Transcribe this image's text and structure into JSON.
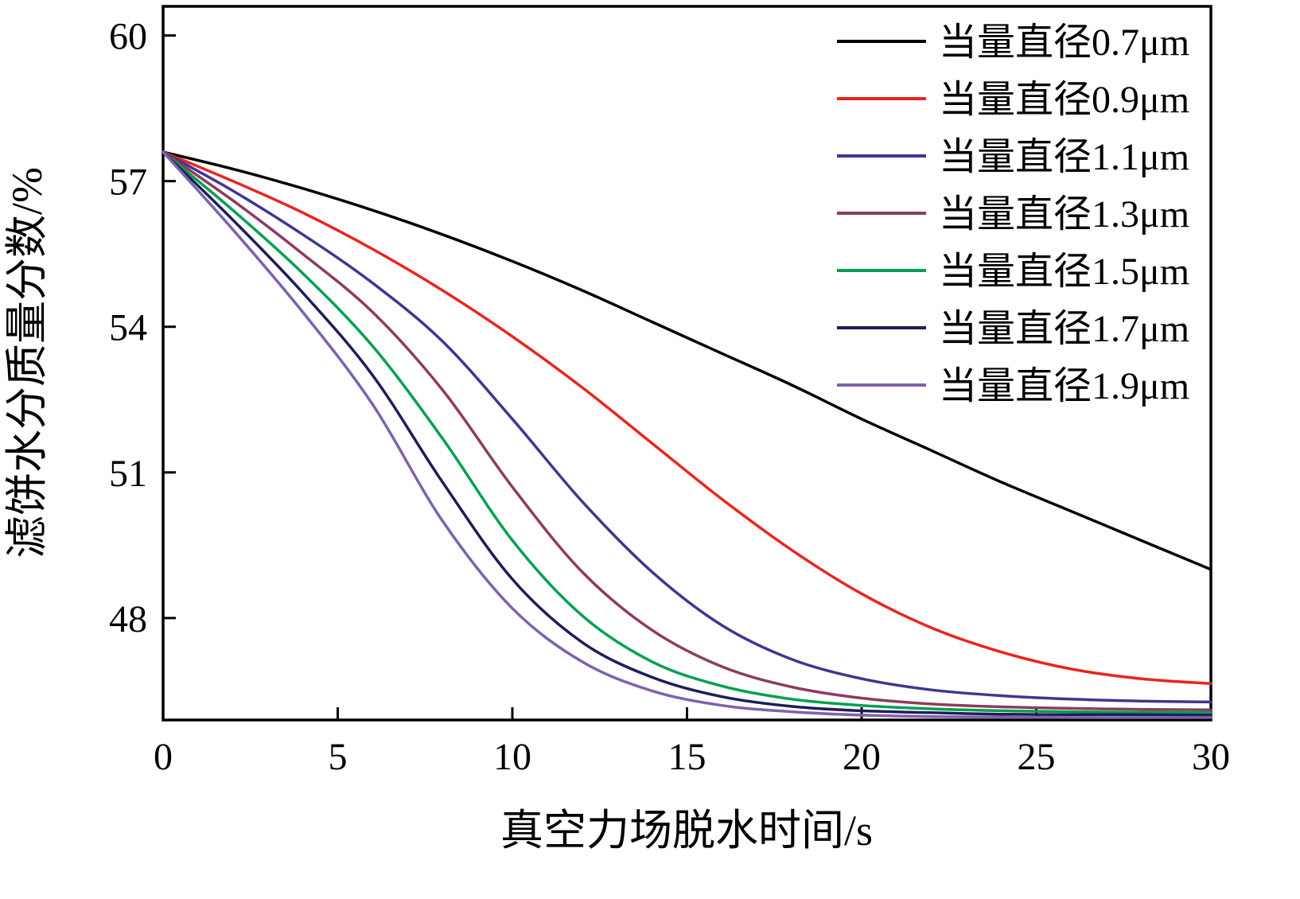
{
  "figure": {
    "background": "#ffffff",
    "axis_color": "#000000"
  },
  "chart_data": {
    "type": "line",
    "title": "",
    "xlabel": "真空力场脱水时间/s",
    "ylabel": "滤饼水分质量分数/%",
    "xlim": [
      0,
      30
    ],
    "ylim": [
      45.9,
      60.6
    ],
    "xticks": [
      0,
      5,
      10,
      15,
      20,
      25,
      30
    ],
    "yticks": [
      48,
      51,
      54,
      57,
      60
    ],
    "grid": false,
    "legend_position": "top-right",
    "x": [
      0,
      2,
      4,
      6,
      8,
      10,
      12,
      14,
      16,
      18,
      20,
      22,
      24,
      26,
      28,
      30
    ],
    "series": [
      {
        "name": "当量直径0.7μm",
        "color": "#000000",
        "values": [
          57.6,
          57.25,
          56.85,
          56.4,
          55.9,
          55.35,
          54.75,
          54.1,
          53.45,
          52.8,
          52.1,
          51.45,
          50.8,
          50.2,
          49.6,
          49.0
        ]
      },
      {
        "name": "当量直径0.9μm",
        "color": "#e8261c",
        "values": [
          57.6,
          57.0,
          56.35,
          55.6,
          54.75,
          53.8,
          52.75,
          51.6,
          50.45,
          49.4,
          48.5,
          47.8,
          47.3,
          46.95,
          46.75,
          46.65
        ]
      },
      {
        "name": "当量直径1.1μm",
        "color": "#3f3693",
        "values": [
          57.6,
          56.8,
          55.9,
          54.9,
          53.7,
          52.1,
          50.4,
          48.95,
          47.85,
          47.15,
          46.75,
          46.52,
          46.4,
          46.33,
          46.29,
          46.27
        ]
      },
      {
        "name": "当量直径1.3μm",
        "color": "#8e3b60",
        "values": [
          57.6,
          56.6,
          55.5,
          54.3,
          52.7,
          50.7,
          48.95,
          47.75,
          47.0,
          46.58,
          46.35,
          46.23,
          46.17,
          46.14,
          46.12,
          46.11
        ]
      },
      {
        "name": "当量直径1.5μm",
        "color": "#00a050",
        "values": [
          57.6,
          56.4,
          55.1,
          53.6,
          51.7,
          49.6,
          48.05,
          47.1,
          46.6,
          46.33,
          46.2,
          46.13,
          46.09,
          46.07,
          46.06,
          46.05
        ]
      },
      {
        "name": "当量直径1.7μm",
        "color": "#1f1d5a",
        "values": [
          57.6,
          56.2,
          54.7,
          53.0,
          50.8,
          48.8,
          47.5,
          46.78,
          46.38,
          46.18,
          46.09,
          46.05,
          46.02,
          46.01,
          46.01,
          46.0
        ]
      },
      {
        "name": "当量直径1.9μm",
        "color": "#7e62ad",
        "values": [
          57.6,
          56.0,
          54.3,
          52.4,
          50.0,
          48.2,
          47.1,
          46.5,
          46.2,
          46.07,
          46.0,
          45.97,
          45.96,
          45.95,
          45.95,
          45.95
        ]
      }
    ]
  }
}
